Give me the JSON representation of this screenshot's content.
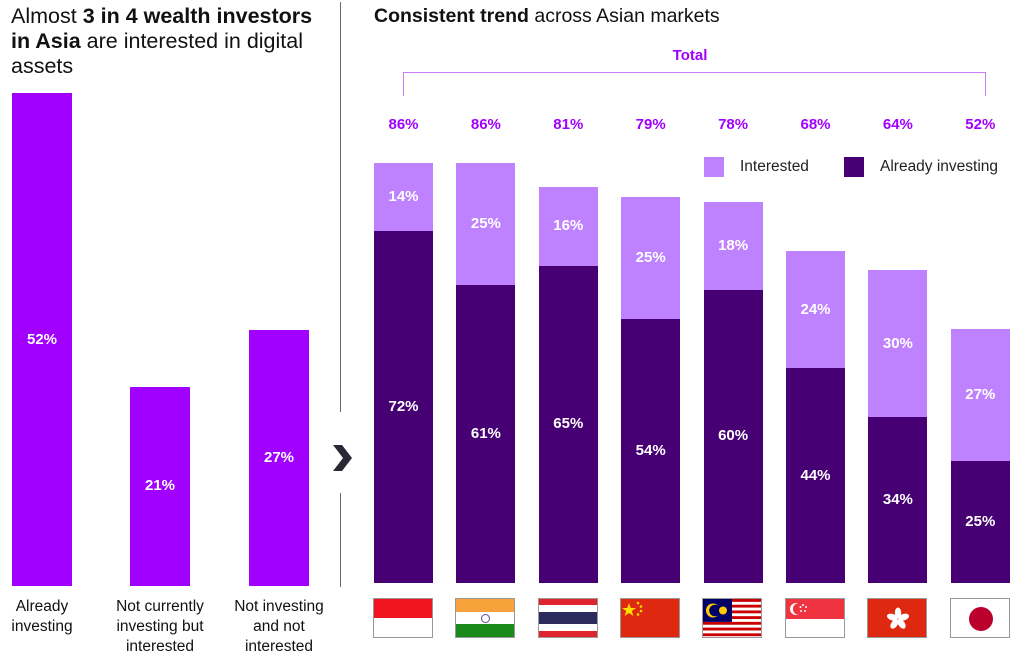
{
  "chart_data": [
    {
      "type": "bar",
      "title": {
        "prefix": "Almost ",
        "bold": "3 in 4 wealth investors in Asia",
        "suffix": " are interested in digital assets"
      },
      "categories": [
        "Already investing",
        "Not currently investing but interested",
        "Not investing and not interested"
      ],
      "category_lines": [
        [
          "Already",
          "investing"
        ],
        [
          "Not currently",
          "investing but",
          "interested"
        ],
        [
          "Not investing",
          "and not",
          "interested"
        ]
      ],
      "values": [
        52,
        21,
        27
      ],
      "value_labels": [
        "52%",
        "21%",
        "27%"
      ],
      "ylim": [
        0,
        52
      ],
      "unit": "%",
      "bar_color": "#a100ff",
      "grid": false
    },
    {
      "type": "bar",
      "stacked": true,
      "title": {
        "bold": "Consistent trend",
        "rest": " across Asian markets"
      },
      "categories": [
        "Indonesia",
        "India",
        "Thailand",
        "China",
        "Malaysia",
        "Singapore",
        "Hong Kong",
        "Japan"
      ],
      "totals_label": "Total",
      "totals": [
        86,
        86,
        81,
        79,
        78,
        68,
        64,
        52
      ],
      "totals_labels": [
        "86%",
        "86%",
        "81%",
        "79%",
        "78%",
        "68%",
        "64%",
        "52%"
      ],
      "series": [
        {
          "name": "Already investing",
          "color": "#460073",
          "values": [
            72,
            61,
            65,
            54,
            60,
            44,
            34,
            25
          ],
          "labels": [
            "72%",
            "61%",
            "65%",
            "54%",
            "60%",
            "44%",
            "34%",
            "25%"
          ]
        },
        {
          "name": "Interested",
          "color": "#be82ff",
          "values": [
            14,
            25,
            16,
            25,
            18,
            24,
            30,
            27
          ],
          "labels": [
            "14%",
            "25%",
            "16%",
            "25%",
            "18%",
            "24%",
            "30%",
            "27%"
          ]
        }
      ],
      "legend": {
        "position": "top-right",
        "items": [
          {
            "label": "Interested",
            "color": "#be82ff"
          },
          {
            "label": "Already investing",
            "color": "#460073"
          }
        ]
      },
      "ylim": [
        0,
        86
      ],
      "unit": "%",
      "grid": false
    }
  ],
  "accent_color": "#a100ff",
  "icons": {
    "arrow": "chevron-right-icon",
    "flags": [
      "indonesia-flag-icon",
      "india-flag-icon",
      "thailand-flag-icon",
      "china-flag-icon",
      "malaysia-flag-icon",
      "singapore-flag-icon",
      "hong-kong-flag-icon",
      "japan-flag-icon"
    ]
  }
}
